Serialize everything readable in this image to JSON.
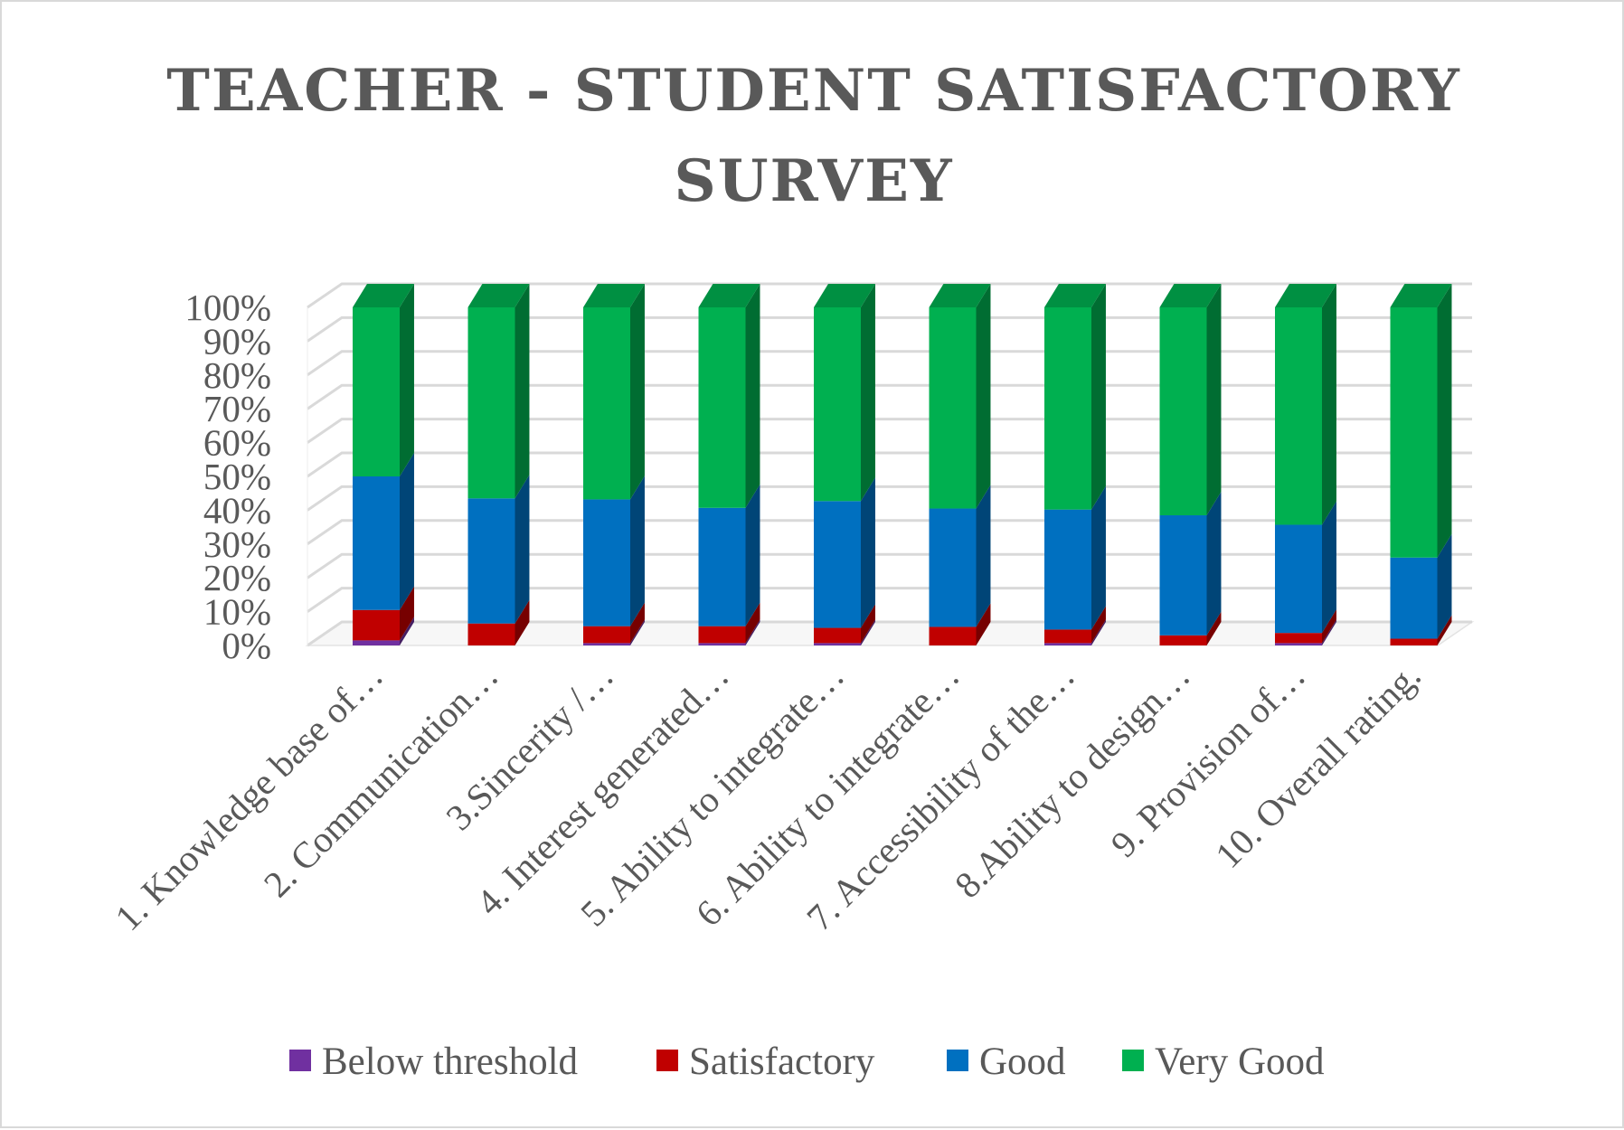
{
  "chart_data": {
    "type": "bar",
    "stacked": "percent",
    "three_d": true,
    "title_lines": [
      "TEACHER - STUDENT SATISFACTORY",
      "SURVEY"
    ],
    "xlabel": "",
    "ylabel": "",
    "ylim": [
      0,
      100
    ],
    "y_ticks": [
      "0%",
      "10%",
      "20%",
      "30%",
      "40%",
      "50%",
      "60%",
      "70%",
      "80%",
      "90%",
      "100%"
    ],
    "grid": true,
    "legend_position": "bottom",
    "categories": [
      "1. Knowledge base of…",
      "2. Communication…",
      "3.Sincerity /…",
      "4. Interest generated…",
      "5. Ability to integrate…",
      "6. Ability to integrate…",
      "7. Accessibility of the…",
      "8.Ability to design…",
      "9. Provision of…",
      "10. Overall rating."
    ],
    "series": [
      {
        "name": "Below threshold",
        "color": "#7030a0",
        "values": [
          1.5,
          0,
          0.7,
          0.7,
          0.7,
          0,
          0.7,
          0,
          0.7,
          0
        ]
      },
      {
        "name": "Satisfactory",
        "color": "#c00000",
        "values": [
          9,
          6.5,
          5,
          5,
          4.5,
          5.5,
          4,
          3,
          3,
          2
        ]
      },
      {
        "name": "Good",
        "color": "#0070c0",
        "values": [
          39.5,
          37,
          37.5,
          35,
          37.5,
          35,
          35.5,
          35.5,
          32,
          24
        ]
      },
      {
        "name": "Very Good",
        "color": "#00b050",
        "values": [
          50,
          56.5,
          56.8,
          59.3,
          57.3,
          59.5,
          59.8,
          61.5,
          64.3,
          74
        ]
      }
    ]
  }
}
